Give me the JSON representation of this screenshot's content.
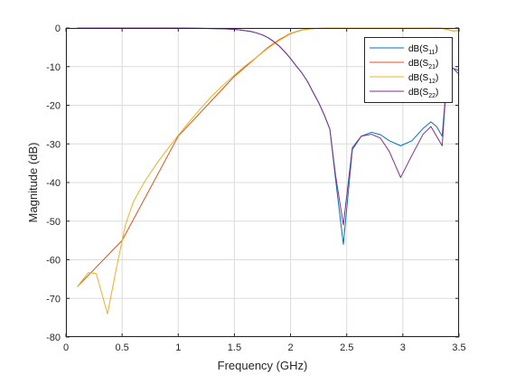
{
  "chart_data": {
    "type": "line",
    "title": "",
    "xlabel": "Frequency (GHz)",
    "ylabel": "Magnitude (dB)",
    "xlim": [
      0,
      3.5
    ],
    "ylim": [
      -80,
      0
    ],
    "xticks": [
      0,
      0.5,
      1,
      1.5,
      2,
      2.5,
      3,
      3.5
    ],
    "xtick_labels": [
      "0",
      "0.5",
      "1",
      "1.5",
      "2",
      "2.5",
      "3",
      "3.5"
    ],
    "yticks": [
      0,
      -10,
      -20,
      -30,
      -40,
      -50,
      -60,
      -70,
      -80
    ],
    "ytick_labels": [
      "0",
      "-10",
      "-20",
      "-30",
      "-40",
      "-50",
      "-60",
      "-70",
      "-80"
    ],
    "grid": true,
    "legend_position": "top-right",
    "series": [
      {
        "name": "dB(S11)",
        "legend_base": "dB(S",
        "legend_sub": "11",
        "legend_tail": ")",
        "color": "#0072BD",
        "x": [
          0.1,
          0.5,
          1.0,
          1.2,
          1.4,
          1.5,
          1.55,
          1.6,
          1.65,
          1.7,
          1.75,
          1.8,
          1.85,
          1.9,
          1.95,
          2.0,
          2.05,
          2.1,
          2.15,
          2.2,
          2.25,
          2.3,
          2.35,
          2.4,
          2.47,
          2.55,
          2.63,
          2.72,
          2.8,
          2.88,
          2.98,
          3.08,
          3.18,
          3.25,
          3.3,
          3.35,
          3.4,
          3.45,
          3.5
        ],
        "y": [
          0,
          0,
          0,
          -0.1,
          -0.2,
          -0.35,
          -0.5,
          -0.7,
          -0.9,
          -1.3,
          -1.8,
          -2.5,
          -3.5,
          -4.7,
          -6.2,
          -7.9,
          -9.8,
          -11.6,
          -13.8,
          -16.6,
          -19.3,
          -22.5,
          -26.2,
          -39,
          -56,
          -31.5,
          -28,
          -27,
          -27.6,
          -29.2,
          -30.5,
          -29.2,
          -26,
          -24.3,
          -25.5,
          -28,
          -10,
          -10.5,
          -11
        ]
      },
      {
        "name": "dB(S21)",
        "legend_base": "dB(S",
        "legend_sub": "21",
        "legend_tail": ")",
        "color": "#D95319",
        "x": [
          0.1,
          0.5,
          1.0,
          1.5,
          1.7,
          1.8,
          1.9,
          2.0,
          2.1,
          2.2,
          2.3,
          2.5,
          2.8,
          3.0,
          3.2,
          3.35,
          3.4,
          3.45,
          3.5
        ],
        "y": [
          -67,
          -55,
          -28,
          -12.5,
          -7.5,
          -5,
          -3,
          -1.4,
          -0.5,
          -0.15,
          -0.05,
          0,
          0,
          0,
          0,
          -0.1,
          -0.4,
          -0.8,
          -0.6
        ]
      },
      {
        "name": "dB(S12)",
        "legend_base": "dB(S",
        "legend_sub": "12",
        "legend_tail": ")",
        "color": "#EDB120",
        "x": [
          0.1,
          0.2,
          0.27,
          0.37,
          0.45,
          0.53,
          0.6,
          0.7,
          0.8,
          0.9,
          1.0,
          1.1,
          1.2,
          1.3,
          1.4,
          1.5,
          1.6,
          1.7,
          1.8,
          1.9,
          2.0,
          2.1,
          2.2,
          2.3,
          2.5,
          2.8,
          3.0,
          3.2,
          3.35,
          3.4,
          3.45,
          3.5
        ],
        "y": [
          -67,
          -63.3,
          -63.6,
          -74,
          -62,
          -51,
          -45,
          -39.8,
          -35.4,
          -31.5,
          -27.8,
          -24.2,
          -20.8,
          -17.6,
          -14.8,
          -12.2,
          -9.7,
          -7.5,
          -5.2,
          -3.2,
          -1.5,
          -0.55,
          -0.15,
          -0.05,
          0,
          0,
          0,
          0,
          -0.1,
          -0.4,
          -0.8,
          -0.6
        ]
      },
      {
        "name": "dB(S22)",
        "legend_base": "dB(S",
        "legend_sub": "22",
        "legend_tail": ")",
        "color": "#7E2F8E",
        "x": [
          0.1,
          0.5,
          1.0,
          1.2,
          1.4,
          1.5,
          1.55,
          1.6,
          1.65,
          1.7,
          1.75,
          1.8,
          1.85,
          1.9,
          1.95,
          2.0,
          2.05,
          2.1,
          2.15,
          2.2,
          2.25,
          2.3,
          2.35,
          2.4,
          2.47,
          2.55,
          2.63,
          2.72,
          2.8,
          2.88,
          2.98,
          3.08,
          3.18,
          3.25,
          3.3,
          3.35,
          3.4,
          3.45,
          3.5
        ],
        "y": [
          0,
          0,
          0,
          -0.1,
          -0.2,
          -0.35,
          -0.5,
          -0.7,
          -0.9,
          -1.3,
          -1.8,
          -2.5,
          -3.5,
          -4.7,
          -6.2,
          -7.9,
          -9.8,
          -11.6,
          -13.8,
          -16.6,
          -19.3,
          -22.5,
          -26.2,
          -38,
          -51,
          -31,
          -28,
          -27.5,
          -28.5,
          -32,
          -38.7,
          -33,
          -27.5,
          -25.5,
          -28,
          -30.5,
          -9,
          -10.5,
          -12
        ]
      }
    ]
  }
}
